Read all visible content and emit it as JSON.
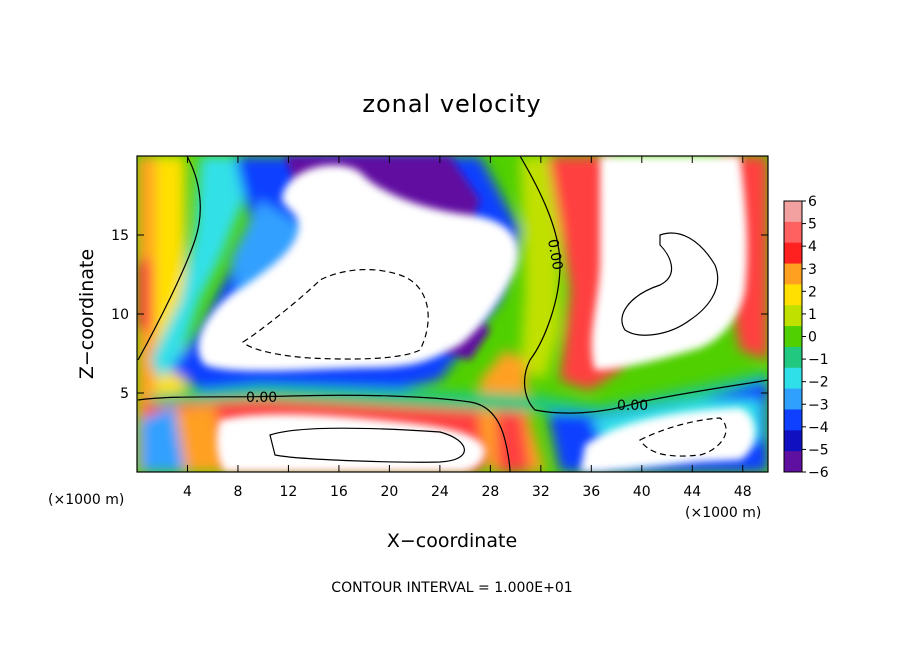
{
  "chart_data": {
    "type": "heatmap",
    "title": "zonal velocity",
    "xlabel": "X−coordinate",
    "ylabel": "Z−coordinate",
    "x_unit": "(×1000 m)",
    "z_unit": "(×1000 m)",
    "xlim": [
      0,
      50
    ],
    "ylim": [
      0,
      20
    ],
    "x_ticks": [
      "4",
      "8",
      "12",
      "16",
      "20",
      "24",
      "28",
      "32",
      "36",
      "40",
      "44",
      "48"
    ],
    "x_tick_values": [
      4,
      8,
      12,
      16,
      20,
      24,
      28,
      32,
      36,
      40,
      44,
      48
    ],
    "y_ticks": [
      "5",
      "10",
      "15"
    ],
    "y_tick_values": [
      5,
      10,
      15
    ],
    "colorbar": {
      "labels": [
        "6",
        "5",
        "4",
        "3",
        "2",
        "1",
        "0",
        "−1",
        "−2",
        "−3",
        "−4",
        "−5",
        "−6"
      ],
      "levels": [
        6,
        5,
        4,
        3,
        2,
        1,
        0,
        -1,
        -2,
        -3,
        -4,
        -5,
        -6
      ],
      "colors": [
        "#f2a0a0",
        "#ff6060",
        "#ff2020",
        "#ffa020",
        "#ffe000",
        "#c0e000",
        "#50d000",
        "#20c880",
        "#30e0e8",
        "#30a0ff",
        "#1040ff",
        "#1010c0",
        "#6010a0"
      ]
    },
    "contour_label": "0.00",
    "contour_interval_text": "CONTOUR INTERVAL = 1.000E+01"
  }
}
